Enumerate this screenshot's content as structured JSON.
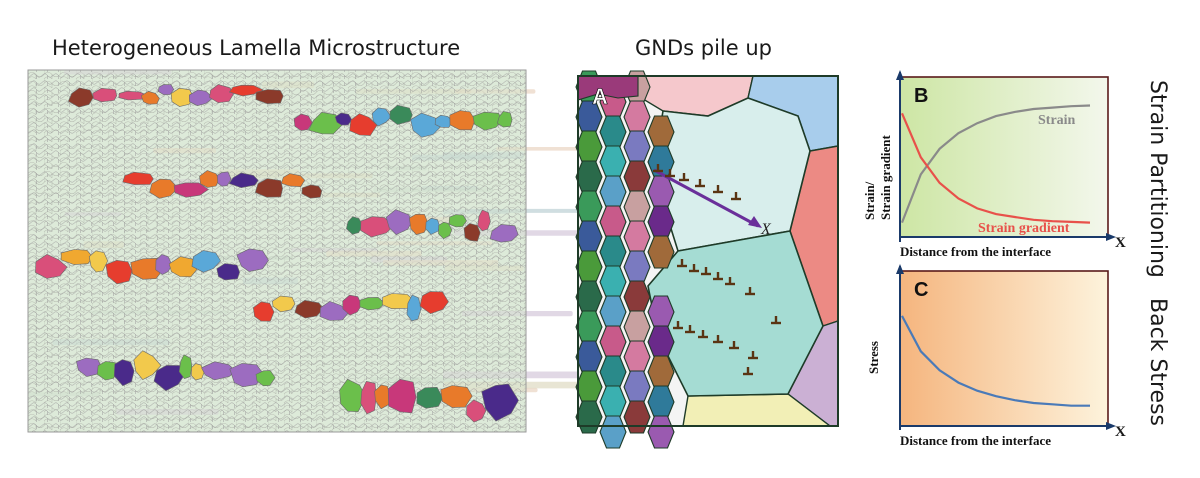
{
  "left_panel": {
    "title": "Heterogeneous Lamella Microstructure",
    "colors": {
      "matrix_fill": "#d7e6da",
      "matrix_line": "#8a8a8a",
      "grain_palette": [
        "#e63d2e",
        "#f0a830",
        "#5aa8d8",
        "#6bbf4b",
        "#4a2a8a",
        "#c8387a",
        "#8b3a2a",
        "#e87a2a",
        "#d94f7a",
        "#9c6cc0",
        "#3a8a5a",
        "#f2c94c"
      ]
    }
  },
  "middle_panel": {
    "title": "GNDs pile up",
    "panel_label": "A",
    "x_label": "X",
    "colors": {
      "border": "#1e3b28",
      "dislocation": "#5a3412",
      "arrow": "#6a2f9a",
      "upper_grain": "#d8eeec",
      "lower_grain": "#a5dcd3"
    }
  },
  "chart_b": {
    "panel_label": "B",
    "ylabel": "Strain/\nStrain gradient",
    "xlabel": "Distance from the interface",
    "axis_label": "X",
    "colors": {
      "bg_left": "#cde6a4",
      "bg_right": "#f3f7ec"
    }
  },
  "chart_c": {
    "panel_label": "C",
    "ylabel": "Stress",
    "xlabel": "Distance from the interface",
    "axis_label": "X",
    "colors": {
      "bg_left": "#f5b57e",
      "bg_right": "#fdf3dc"
    }
  },
  "chart_data": [
    {
      "type": "line",
      "x": [
        0,
        0.1,
        0.2,
        0.3,
        0.4,
        0.5,
        0.6,
        0.7,
        0.8,
        0.9,
        1.0
      ],
      "series": [
        {
          "name": "Strain",
          "color": "#8a8a8a",
          "values": [
            0.08,
            0.42,
            0.6,
            0.71,
            0.78,
            0.83,
            0.86,
            0.88,
            0.89,
            0.9,
            0.905
          ]
        },
        {
          "name": "Strain gradient",
          "color": "#e8514a",
          "values": [
            0.85,
            0.54,
            0.36,
            0.25,
            0.18,
            0.14,
            0.12,
            0.1,
            0.09,
            0.085,
            0.08
          ]
        }
      ],
      "xlabel": "Distance from the interface",
      "ylabel": "Strain/\nStrain gradient"
    },
    {
      "type": "line",
      "x": [
        0,
        0.1,
        0.2,
        0.3,
        0.4,
        0.5,
        0.6,
        0.7,
        0.8,
        0.9,
        1.0
      ],
      "series": [
        {
          "color": "#4a7ab8",
          "values": [
            0.78,
            0.52,
            0.38,
            0.29,
            0.23,
            0.19,
            0.16,
            0.14,
            0.13,
            0.12,
            0.12
          ]
        }
      ],
      "xlabel": "Distance from the interface",
      "ylabel": "Stress"
    }
  ],
  "side_labels": {
    "top": "Strain Partitioning",
    "bottom": "Back Stress"
  }
}
